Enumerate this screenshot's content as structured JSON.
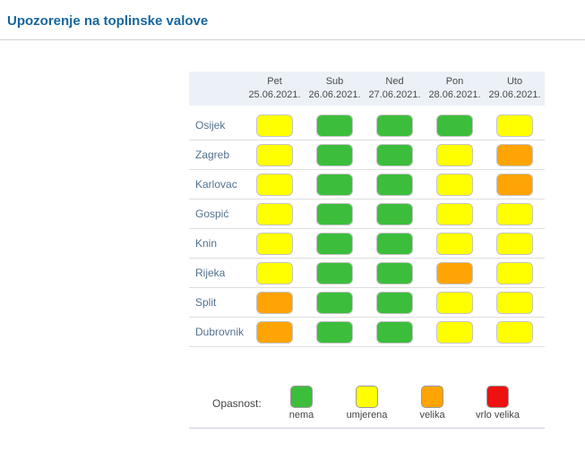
{
  "page": {
    "title": "Upozorenje na toplinske valove"
  },
  "colors": {
    "title_blue": "#17669e",
    "header_bg": "#ebf1f7",
    "row_label": "#53718f",
    "green": "#3cbe3c",
    "yellow": "#ffff00",
    "orange": "#ffa405",
    "red": "#ee1111"
  },
  "chart_data": {
    "type": "heatmap",
    "title": "Upozorenje na toplinske valove",
    "columns": [
      {
        "day": "Pet",
        "date": "25.06.2021."
      },
      {
        "day": "Sub",
        "date": "26.06.2021."
      },
      {
        "day": "Ned",
        "date": "27.06.2021."
      },
      {
        "day": "Pon",
        "date": "28.06.2021."
      },
      {
        "day": "Uto",
        "date": "29.06.2021."
      }
    ],
    "rows": [
      {
        "city": "Osijek",
        "levels": [
          "umjerena",
          "nema",
          "nema",
          "nema",
          "umjerena"
        ]
      },
      {
        "city": "Zagreb",
        "levels": [
          "umjerena",
          "nema",
          "nema",
          "umjerena",
          "velika"
        ]
      },
      {
        "city": "Karlovac",
        "levels": [
          "umjerena",
          "nema",
          "nema",
          "umjerena",
          "velika"
        ]
      },
      {
        "city": "Gospić",
        "levels": [
          "umjerena",
          "nema",
          "nema",
          "umjerena",
          "umjerena"
        ]
      },
      {
        "city": "Knin",
        "levels": [
          "umjerena",
          "nema",
          "nema",
          "umjerena",
          "umjerena"
        ]
      },
      {
        "city": "Rijeka",
        "levels": [
          "umjerena",
          "nema",
          "nema",
          "velika",
          "umjerena"
        ]
      },
      {
        "city": "Split",
        "levels": [
          "velika",
          "nema",
          "nema",
          "umjerena",
          "umjerena"
        ]
      },
      {
        "city": "Dubrovnik",
        "levels": [
          "velika",
          "nema",
          "nema",
          "umjerena",
          "umjerena"
        ]
      }
    ],
    "level_colors": {
      "nema": "#3cbe3c",
      "umjerena": "#ffff00",
      "velika": "#ffa405",
      "vrlo velika": "#ee1111"
    },
    "legend": {
      "label": "Opasnost:",
      "items": [
        {
          "label": "nema",
          "color": "#3cbe3c"
        },
        {
          "label": "umjerena",
          "color": "#ffff00"
        },
        {
          "label": "velika",
          "color": "#ffa405"
        },
        {
          "label": "vrlo velika",
          "color": "#ee1111"
        }
      ]
    }
  }
}
